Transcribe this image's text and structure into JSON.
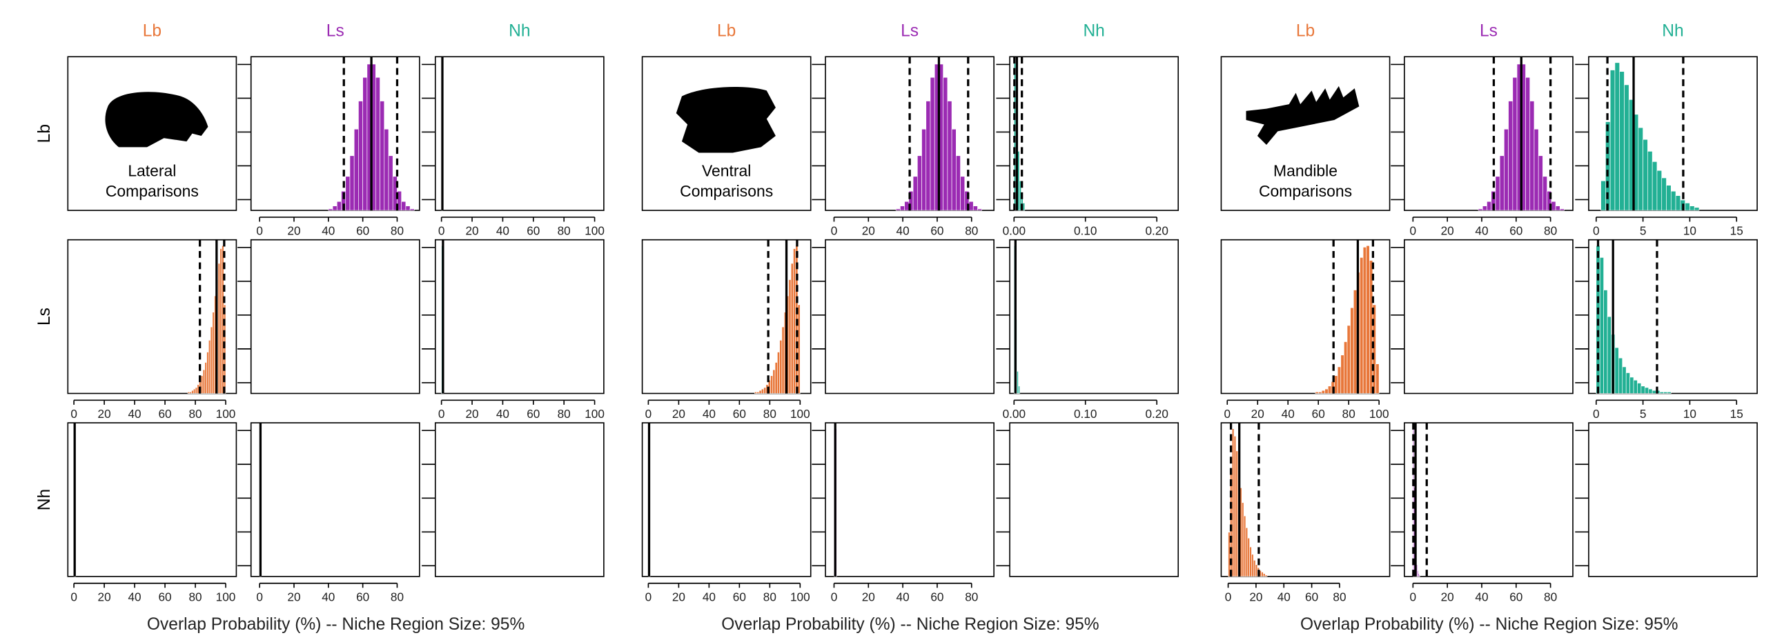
{
  "row_labels": [
    "Lb",
    "Ls",
    "Nh"
  ],
  "groups": [
    {
      "caption": [
        "Lateral",
        "Comparisons"
      ],
      "col_labels": [
        "Lb",
        "Ls",
        "Nh"
      ],
      "col_colors": [
        "#e8773a",
        "#9b2bb3",
        "#22b094"
      ],
      "xlabel": "Overlap Probability (%) -- Niche Region Size: 95%",
      "panels": [
        [
          null,
          {
            "type": "histogram",
            "color": "#9b2bb3",
            "xlim": [
              -5,
              93
            ],
            "ylim": [
              0,
              104
            ],
            "xticks": [
              0,
              20,
              40,
              60,
              80
            ],
            "bins": [
              40,
              42.5,
              45,
              47.5,
              50,
              52.5,
              55,
              57.5,
              60,
              62.5,
              65,
              67.5,
              70,
              72.5,
              75,
              77.5,
              80,
              82.5,
              85,
              87.5,
              90
            ],
            "counts": [
              1,
              3,
              6,
              13,
              23,
              37,
              55,
              74,
              90,
              99,
              99,
              90,
              74,
              55,
              37,
              23,
              13,
              6,
              3,
              1
            ],
            "lines": {
              "lower": 49,
              "mean": 65,
              "upper": 80
            }
          },
          {
            "type": "histogram",
            "color": "#22b094",
            "xlim": [
              -4,
              106
            ],
            "ylim": [
              0,
              104
            ],
            "xticks": [
              0,
              20,
              40,
              60,
              80,
              100
            ],
            "bins": [
              0,
              1
            ],
            "counts": [
              100
            ],
            "lines": {
              "mean": 0.6
            }
          }
        ],
        [
          {
            "type": "histogram",
            "color": "#e8773a",
            "xlim": [
              -4,
              107
            ],
            "ylim": [
              0,
              104
            ],
            "xticks": [
              0,
              20,
              40,
              60,
              80,
              100
            ],
            "bins": [
              75,
              76.25,
              77.5,
              78.75,
              80,
              81.25,
              82.5,
              83.75,
              85,
              86.25,
              87.5,
              88.75,
              90,
              91.25,
              92.5,
              93.75,
              95,
              96.25,
              97.5,
              98.75,
              100
            ],
            "counts": [
              1,
              1,
              2,
              3,
              4,
              6,
              9,
              12,
              16,
              21,
              28,
              36,
              45,
              55,
              66,
              77,
              88,
              98,
              100,
              60
            ],
            "lines": {
              "lower": 83,
              "mean": 94,
              "upper": 99
            }
          },
          null,
          {
            "type": "histogram",
            "color": "#22b094",
            "xlim": [
              -4,
              106
            ],
            "ylim": [
              0,
              104
            ],
            "xticks": [
              0,
              20,
              40,
              60,
              80,
              100
            ],
            "bins": [
              0,
              1.5
            ],
            "counts": [
              100
            ],
            "lines": {
              "mean": 1
            }
          }
        ],
        [
          {
            "type": "histogram",
            "color": "#e8773a",
            "xlim": [
              -4,
              107
            ],
            "ylim": [
              0,
              104
            ],
            "xticks": [
              0,
              20,
              40,
              60,
              80,
              100
            ],
            "bins": [
              0,
              1.2
            ],
            "counts": [
              100
            ],
            "lines": {
              "mean": 0.5
            }
          },
          {
            "type": "histogram",
            "color": "#9b2bb3",
            "xlim": [
              -5,
              93
            ],
            "ylim": [
              0,
              104
            ],
            "xticks": [
              0,
              20,
              40,
              60,
              80
            ],
            "bins": [
              0,
              1
            ],
            "counts": [
              100
            ],
            "lines": {
              "mean": 0.5
            }
          },
          null
        ]
      ]
    },
    {
      "caption": [
        "Ventral",
        "Comparisons"
      ],
      "col_labels": [
        "Lb",
        "Ls",
        "Nh"
      ],
      "col_colors": [
        "#e8773a",
        "#9b2bb3",
        "#22b094"
      ],
      "xlabel": "Overlap Probability (%) -- Niche Region Size: 95%",
      "panels": [
        [
          null,
          {
            "type": "histogram",
            "color": "#9b2bb3",
            "xlim": [
              -5,
              93
            ],
            "ylim": [
              0,
              104
            ],
            "xticks": [
              0,
              20,
              40,
              60,
              80
            ],
            "bins": [
              36,
              38.5,
              41,
              43.5,
              46,
              48.5,
              51,
              53.5,
              56,
              58.5,
              61,
              63.5,
              66,
              68.5,
              71,
              73.5,
              76,
              78.5,
              81,
              83.5,
              86
            ],
            "counts": [
              1,
              3,
              6,
              13,
              23,
              37,
              55,
              74,
              90,
              99,
              99,
              90,
              74,
              55,
              37,
              23,
              13,
              6,
              3,
              1
            ],
            "lines": {
              "lower": 44,
              "mean": 61,
              "upper": 78
            }
          },
          {
            "type": "histogram",
            "color": "#22b094",
            "xlim": [
              -0.006,
              0.23
            ],
            "ylim": [
              0,
              104
            ],
            "xticks": [
              {
                "value": 0,
                "label": "0.00"
              },
              {
                "value": 0.1,
                "label": "0.10"
              },
              {
                "value": 0.2,
                "label": "0.20"
              }
            ],
            "bins": [
              0,
              0.0025,
              0.005,
              0.0075,
              0.01,
              0.0125,
              0.015
            ],
            "counts": [
              100,
              70,
              40,
              20,
              10,
              5
            ],
            "lines": {
              "lower": 0.0005,
              "mean": 0.004,
              "upper": 0.011
            }
          }
        ],
        [
          {
            "type": "histogram",
            "color": "#e8773a",
            "xlim": [
              -4,
              107
            ],
            "ylim": [
              0,
              104
            ],
            "xticks": [
              0,
              20,
              40,
              60,
              80,
              100
            ],
            "bins": [
              70,
              71.5,
              73,
              74.5,
              76,
              77.5,
              79,
              80.5,
              82,
              83.5,
              85,
              86.5,
              88,
              89.5,
              91,
              92.5,
              94,
              95.5,
              97,
              98.5,
              100
            ],
            "counts": [
              1,
              1,
              2,
              3,
              4,
              6,
              9,
              12,
              16,
              21,
              28,
              36,
              45,
              55,
              66,
              77,
              88,
              98,
              100,
              60
            ],
            "lines": {
              "lower": 79,
              "mean": 91,
              "upper": 98
            }
          },
          null,
          {
            "type": "histogram",
            "color": "#22b094",
            "xlim": [
              -0.006,
              0.23
            ],
            "ylim": [
              0,
              104
            ],
            "xticks": [
              {
                "value": 0,
                "label": "0.00"
              },
              {
                "value": 0.1,
                "label": "0.10"
              },
              {
                "value": 0.2,
                "label": "0.20"
              }
            ],
            "bins": [
              0,
              0.002,
              0.004,
              0.006,
              0.008
            ],
            "counts": [
              100,
              50,
              15,
              5
            ],
            "lines": {
              "mean": 0.002
            }
          }
        ],
        [
          {
            "type": "histogram",
            "color": "#e8773a",
            "xlim": [
              -4,
              107
            ],
            "ylim": [
              0,
              104
            ],
            "xticks": [
              0,
              20,
              40,
              60,
              80,
              100
            ],
            "bins": [
              0,
              1.2
            ],
            "counts": [
              100
            ],
            "lines": {
              "mean": 0.5
            }
          },
          {
            "type": "histogram",
            "color": "#9b2bb3",
            "xlim": [
              -5,
              93
            ],
            "ylim": [
              0,
              104
            ],
            "xticks": [
              0,
              20,
              40,
              60,
              80
            ],
            "bins": [
              0,
              1.5
            ],
            "counts": [
              100
            ],
            "lines": {
              "mean": 0.7
            }
          },
          null
        ]
      ]
    },
    {
      "caption": [
        "Mandible",
        "Comparisons"
      ],
      "col_labels": [
        "Lb",
        "Ls",
        "Nh"
      ],
      "col_colors": [
        "#e8773a",
        "#9b2bb3",
        "#22b094"
      ],
      "xlabel": "Overlap Probability (%) -- Niche Region Size: 95%",
      "panels": [
        [
          null,
          {
            "type": "histogram",
            "color": "#9b2bb3",
            "xlim": [
              -5,
              93
            ],
            "ylim": [
              0,
              104
            ],
            "xticks": [
              0,
              20,
              40,
              60,
              80
            ],
            "bins": [
              38,
              40.5,
              43,
              45.5,
              48,
              50.5,
              53,
              55.5,
              58,
              60.5,
              63,
              65.5,
              68,
              70.5,
              73,
              75.5,
              78,
              80.5,
              83,
              85.5,
              88
            ],
            "counts": [
              1,
              3,
              6,
              13,
              23,
              37,
              55,
              74,
              90,
              99,
              99,
              90,
              74,
              55,
              37,
              23,
              13,
              6,
              3,
              1
            ],
            "lines": {
              "lower": 47,
              "mean": 63,
              "upper": 80
            }
          },
          {
            "type": "histogram",
            "color": "#22b094",
            "xlim": [
              -0.8,
              17.2
            ],
            "ylim": [
              0,
              104
            ],
            "xticks": [
              0,
              5,
              10,
              15
            ],
            "bins": [
              0.5,
              1,
              1.5,
              2,
              2.5,
              3,
              3.5,
              4,
              4.5,
              5,
              5.5,
              6,
              6.5,
              7,
              7.5,
              8,
              8.5,
              9,
              9.5,
              10,
              10.5,
              11
            ],
            "counts": [
              20,
              60,
              95,
              100,
              94,
              85,
              75,
              65,
              56,
              48,
              40,
              33,
              27,
              22,
              17,
              13,
              10,
              7,
              5,
              3,
              2
            ],
            "lines": {
              "lower": 1.2,
              "mean": 4,
              "upper": 9.3
            }
          }
        ],
        [
          {
            "type": "histogram",
            "color": "#e8773a",
            "xlim": [
              -4,
              107
            ],
            "ylim": [
              0,
              104
            ],
            "xticks": [
              0,
              20,
              40,
              60,
              80,
              100
            ],
            "bins": [
              58,
              60.1,
              62.2,
              64.3,
              66.4,
              68.5,
              70.6,
              72.7,
              74.8,
              76.9,
              79,
              81.1,
              83.2,
              85.3,
              87.4,
              89.5,
              91.6,
              93.7,
              95.8,
              97.9,
              100
            ],
            "counts": [
              1,
              1,
              2,
              3,
              5,
              8,
              12,
              18,
              26,
              35,
              46,
              58,
              70,
              82,
              92,
              99,
              100,
              90,
              60,
              20
            ],
            "lines": {
              "lower": 70,
              "mean": 86,
              "upper": 96
            }
          },
          null,
          {
            "type": "histogram",
            "color": "#22b094",
            "xlim": [
              -0.8,
              17.2
            ],
            "ylim": [
              0,
              104
            ],
            "xticks": [
              0,
              5,
              10,
              15
            ],
            "bins": [
              0,
              0.4,
              0.8,
              1.2,
              1.6,
              2,
              2.4,
              2.8,
              3.2,
              3.6,
              4,
              4.4,
              4.8,
              5.2,
              5.6,
              6,
              6.4,
              6.8,
              7.2,
              7.6,
              8
            ],
            "counts": [
              100,
              92,
              70,
              52,
              40,
              31,
              24,
              18,
              14,
              11,
              9,
              7,
              5,
              4,
              3,
              2,
              2,
              1,
              1,
              1
            ],
            "lines": {
              "lower": 0.2,
              "mean": 1.8,
              "upper": 6.5
            }
          }
        ],
        [
          {
            "type": "histogram",
            "color": "#e8773a",
            "xlim": [
              -5,
              116
            ],
            "ylim": [
              0,
              104
            ],
            "xticks": [
              0,
              20,
              40,
              60,
              80
            ],
            "bins": [
              0,
              1.4,
              2.8,
              4.2,
              5.6,
              7,
              8.4,
              9.8,
              11.2,
              12.6,
              14,
              15.4,
              16.8,
              18.2,
              19.6,
              21,
              22.4,
              23.8,
              25.2,
              26.6,
              28
            ],
            "counts": [
              30,
              70,
              100,
              95,
              85,
              72,
              60,
              50,
              41,
              33,
              26,
              20,
              15,
              11,
              8,
              6,
              4,
              3,
              2,
              1
            ],
            "lines": {
              "lower": 2,
              "mean": 8,
              "upper": 22
            }
          },
          {
            "type": "histogram",
            "color": "#9b2bb3",
            "xlim": [
              -5,
              93
            ],
            "ylim": [
              0,
              104
            ],
            "xticks": [
              0,
              20,
              40,
              60,
              80
            ],
            "bins": [
              0,
              0.5,
              1,
              1.5,
              2,
              2.5,
              3,
              3.5,
              4
            ],
            "counts": [
              100,
              60,
              30,
              15,
              8,
              4,
              2,
              1
            ],
            "lines": {
              "lower": 0.2,
              "mean": 1.5,
              "upper": 8
            }
          },
          null
        ]
      ]
    }
  ]
}
